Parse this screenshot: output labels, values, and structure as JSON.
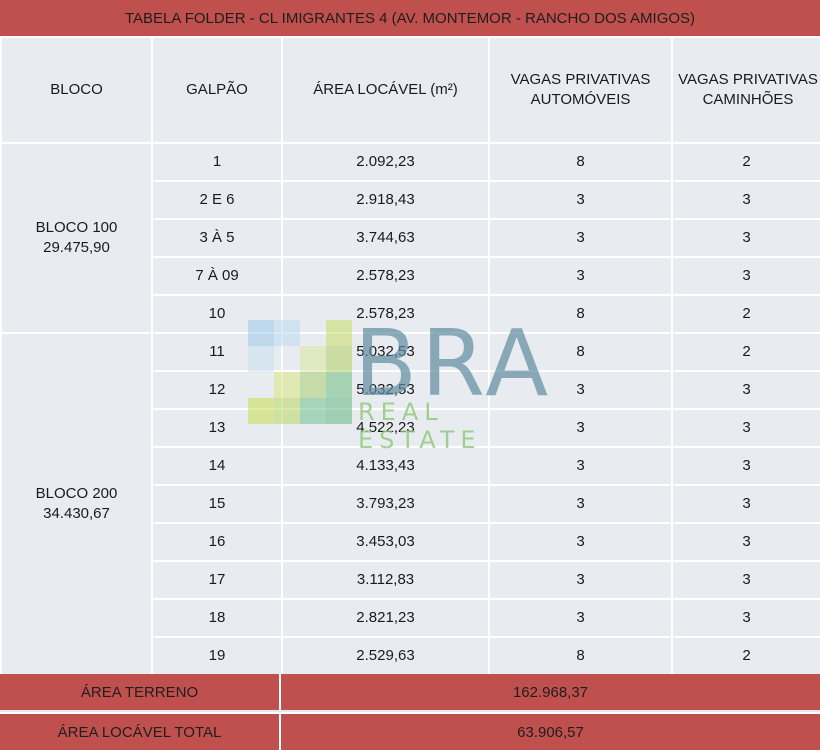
{
  "title": "TABELA FOLDER - CL IMIGRANTES 4 (AV. MONTEMOR - RANCHO DOS AMIGOS)",
  "headers": {
    "bloco": "BLOCO",
    "galpao": "GALPÃO",
    "area": "ÁREA LOCÁVEL (m²)",
    "vagas_auto": "VAGAS PRIVATIVAS AUTOMÓVEIS",
    "vagas_cam": "VAGAS PRIVATIVAS CAMINHÕES"
  },
  "blocks": [
    {
      "name": "BLOCO 100",
      "total": "29.475,90",
      "rows": [
        {
          "galpao": "1",
          "area": "2.092,23",
          "auto": "8",
          "cam": "2"
        },
        {
          "galpao": "2 E 6",
          "area": "2.918,43",
          "auto": "3",
          "cam": "3"
        },
        {
          "galpao": "3 À 5",
          "area": "3.744,63",
          "auto": "3",
          "cam": "3"
        },
        {
          "galpao": "7 À 09",
          "area": "2.578,23",
          "auto": "3",
          "cam": "3"
        },
        {
          "galpao": "10",
          "area": "2.578,23",
          "auto": "8",
          "cam": "2"
        }
      ]
    },
    {
      "name": "BLOCO 200",
      "total": "34.430,67",
      "rows": [
        {
          "galpao": "11",
          "area": "5.032,53",
          "auto": "8",
          "cam": "2"
        },
        {
          "galpao": "12",
          "area": "5.032,53",
          "auto": "3",
          "cam": "3"
        },
        {
          "galpao": "13",
          "area": "4.522,23",
          "auto": "3",
          "cam": "3"
        },
        {
          "galpao": "14",
          "area": "4.133,43",
          "auto": "3",
          "cam": "3"
        },
        {
          "galpao": "15",
          "area": "3.793,23",
          "auto": "3",
          "cam": "3"
        },
        {
          "galpao": "16",
          "area": "3.453,03",
          "auto": "3",
          "cam": "3"
        },
        {
          "galpao": "17",
          "area": "3.112,83",
          "auto": "3",
          "cam": "3"
        },
        {
          "galpao": "18",
          "area": "2.821,23",
          "auto": "3",
          "cam": "3"
        },
        {
          "galpao": "19",
          "area": "2.529,63",
          "auto": "8",
          "cam": "2"
        }
      ]
    }
  ],
  "footer": {
    "area_terreno_label": "ÁREA TERRENO",
    "area_terreno_value": "162.968,37",
    "area_total_label": "ÁREA LOCÁVEL TOTAL",
    "area_total_value": "63.906,57"
  },
  "watermark": {
    "brand": "BRA",
    "sub": "REAL ESTATE"
  },
  "colors": {
    "header_red": "#c0504d",
    "cell_bg": "#e8ecf1",
    "border": "#ffffff"
  }
}
